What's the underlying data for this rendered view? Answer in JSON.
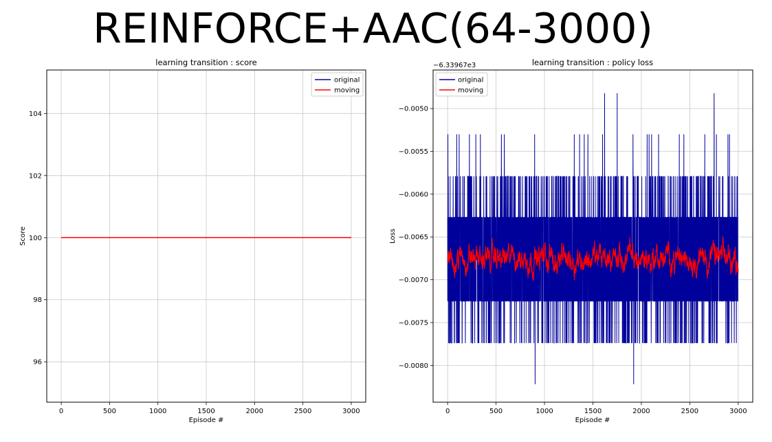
{
  "page": {
    "title": "REINFORCE+AAC(64-3000)"
  },
  "colors": {
    "original": "#00009b",
    "moving": "#ff0000",
    "grid": "#c8c8c8",
    "axis": "#000000"
  },
  "chart_data": [
    {
      "type": "line",
      "title": "learning transition : score",
      "xlabel": "Episode #",
      "ylabel": "Score",
      "xlim": [
        -150,
        3150
      ],
      "ylim": [
        94.7,
        105.4
      ],
      "xticks": [
        0,
        500,
        1000,
        1500,
        2000,
        2500,
        3000
      ],
      "yticks": [
        96,
        98,
        100,
        102,
        104
      ],
      "grid": true,
      "legend_position": "top-right",
      "legend": [
        "original",
        "moving"
      ],
      "series": [
        {
          "name": "original",
          "x": [
            0,
            3000
          ],
          "y": [
            100,
            100
          ]
        },
        {
          "name": "moving",
          "x": [
            0,
            3000
          ],
          "y": [
            100,
            100
          ]
        }
      ]
    },
    {
      "type": "line",
      "title": "learning transition : policy loss",
      "offset_text": "−6.33967e3",
      "xlabel": "Episode #",
      "ylabel": "Loss",
      "xlim": [
        -150,
        3150
      ],
      "ylim": [
        -0.00843,
        -0.00455
      ],
      "xticks": [
        0,
        500,
        1000,
        1500,
        2000,
        2500,
        3000
      ],
      "yticks": [
        -0.008,
        -0.0075,
        -0.007,
        -0.0065,
        -0.006,
        -0.0055,
        -0.005
      ],
      "ytick_labels": [
        "−0.0080",
        "−0.0075",
        "−0.0070",
        "−0.0065",
        "−0.0060",
        "−0.0055",
        "−0.0050"
      ],
      "grid": true,
      "legend_position": "top-left",
      "legend": [
        "original",
        "moving"
      ],
      "series": [
        {
          "name": "original",
          "x_range": [
            0,
            3000
          ],
          "points": 3000,
          "levels": [
            -0.00822,
            -0.00774,
            -0.00725,
            -0.00677,
            -0.00627,
            -0.00579,
            -0.0053,
            -0.00482
          ],
          "y_range": [
            -0.00822,
            -0.00482
          ]
        },
        {
          "name": "moving",
          "x_range": [
            0,
            3000
          ],
          "points": 3000,
          "mean": -0.00675,
          "y_range": [
            -0.00729,
            -0.00623
          ]
        }
      ]
    }
  ]
}
